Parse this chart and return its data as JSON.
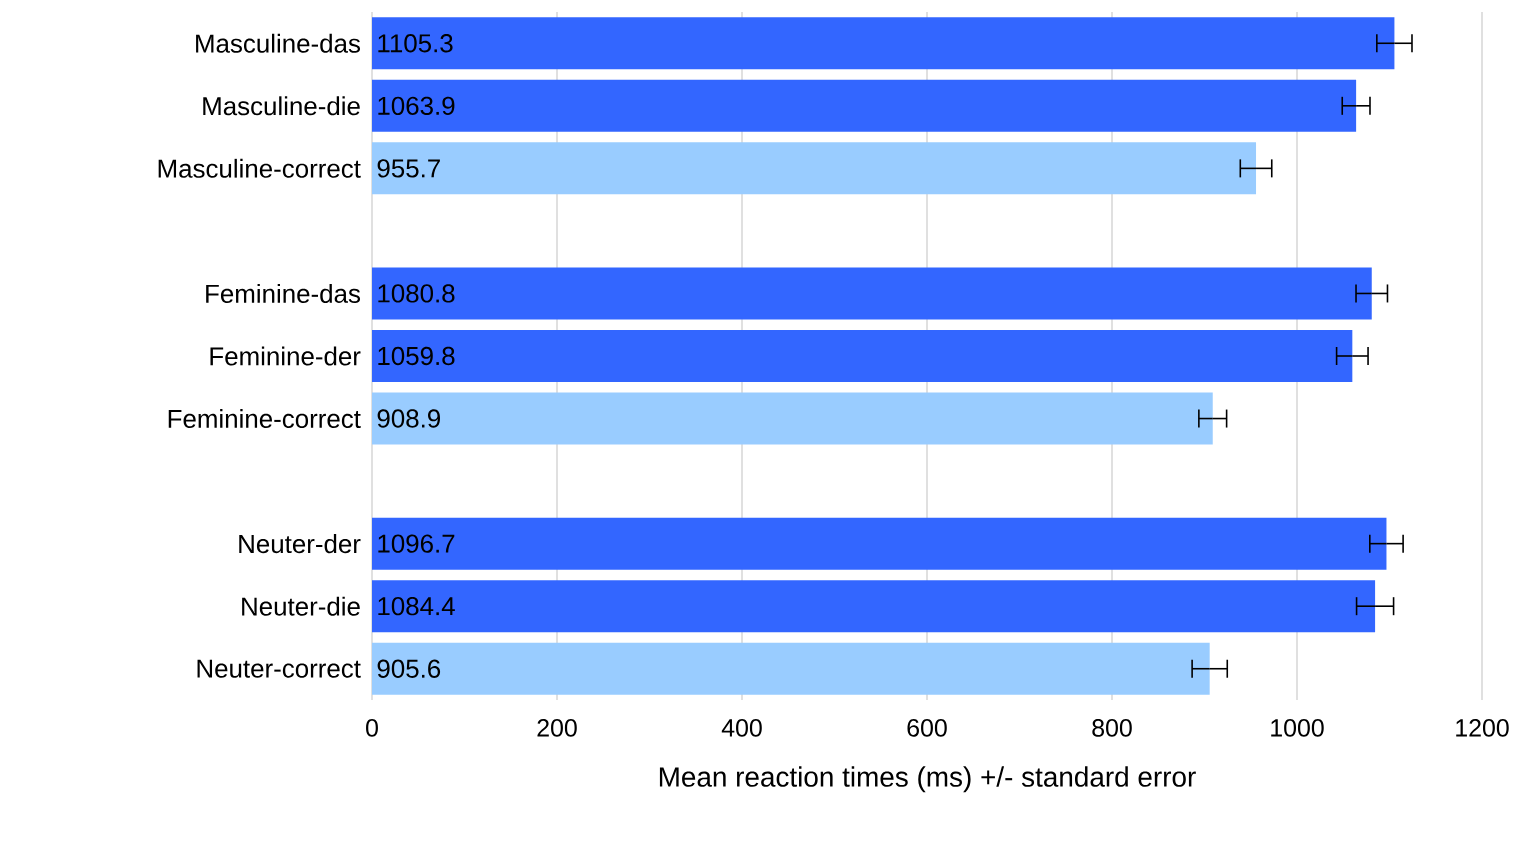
{
  "chart_data": {
    "type": "bar",
    "orientation": "horizontal",
    "xlabel": "Mean reaction times (ms) +/- standard error",
    "categories": [
      "Masculine-das",
      "Masculine-die",
      "Masculine-correct",
      null,
      "Feminine-das",
      "Feminine-der",
      "Feminine-correct",
      null,
      "Neuter-der",
      "Neuter-die",
      "Neuter-correct"
    ],
    "values": [
      1105.3,
      1063.9,
      955.7,
      null,
      1080.8,
      1059.8,
      908.9,
      null,
      1096.7,
      1084.4,
      905.6
    ],
    "colors": [
      "#3366ff",
      "#3366ff",
      "#99ccff",
      null,
      "#3366ff",
      "#3366ff",
      "#99ccff",
      null,
      "#3366ff",
      "#3366ff",
      "#99ccff"
    ],
    "errors": [
      19,
      15,
      17,
      null,
      17,
      17,
      15,
      null,
      18,
      20,
      19
    ],
    "xlim": [
      0,
      1200
    ],
    "xticks": [
      0,
      200,
      400,
      600,
      800,
      1000,
      1200
    ],
    "grid": "x",
    "data_labels": true
  }
}
